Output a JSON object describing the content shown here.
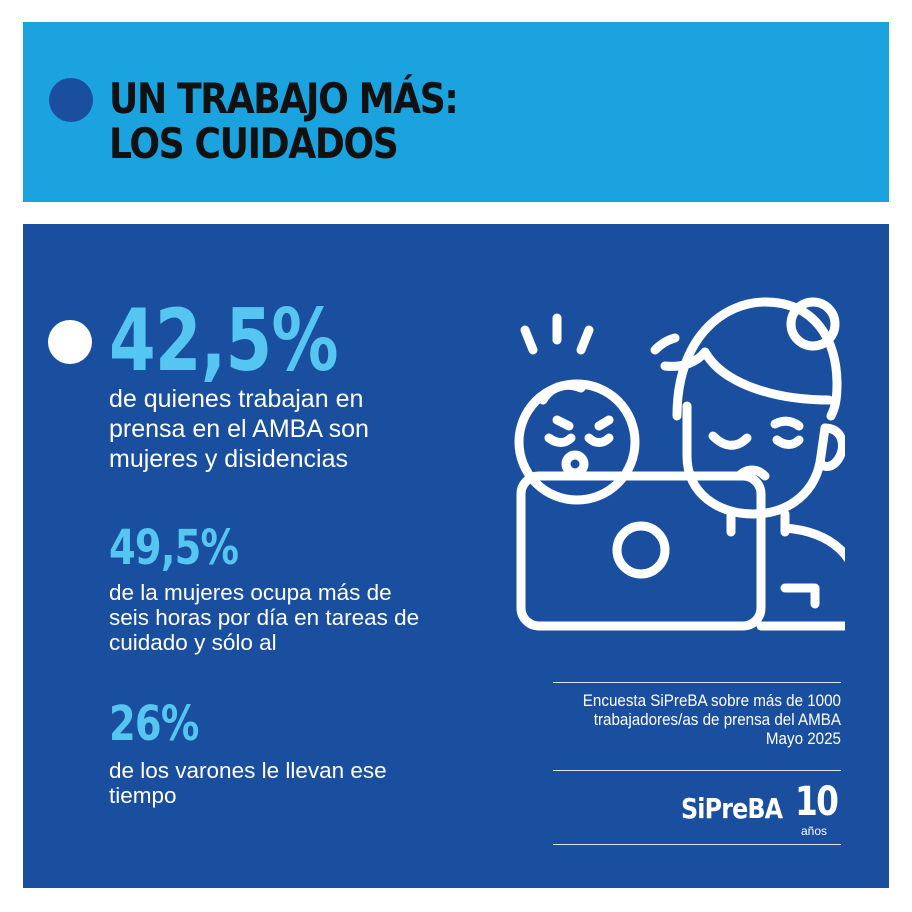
{
  "header": {
    "title_line1": "UN TRABAJO MÁS:",
    "title_line2": "LOS CUIDADOS"
  },
  "stats": [
    {
      "value": "42,5%",
      "description": "de quienes trabajan en prensa en el AMBA son mujeres y disidencias"
    },
    {
      "value": "49,5%",
      "description": "de la mujeres ocupa más de seis horas por día en tareas de cuidado y sólo al"
    },
    {
      "value": "26%",
      "description": "de los varones le llevan ese tiempo"
    }
  ],
  "source": {
    "line1": "Encuesta SiPreBA sobre más de 1000",
    "line2": "trabajadores/as de prensa del AMBA",
    "line3": "Mayo 2025"
  },
  "logo": {
    "name": "SiPreBA",
    "number": "10",
    "suffix": "años"
  },
  "icons": [
    "mother-with-baby-at-laptop-icon"
  ],
  "colors": {
    "header_bg": "#1ba3e0",
    "main_bg": "#1a4f9f",
    "accent": "#55c5f2",
    "text": "#ffffff"
  }
}
